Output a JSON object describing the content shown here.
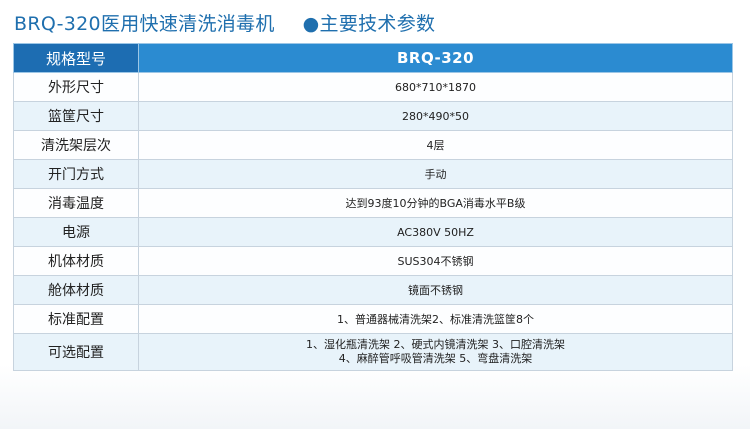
{
  "title": "BRQ-320医用快速清洗消毒机",
  "subtitle": "●主要技术参数",
  "table": {
    "header": {
      "key": "规格型号",
      "value": "BRQ-320"
    },
    "rows": [
      {
        "key": "外形尺寸",
        "value": "680*710*1870"
      },
      {
        "key": "篮筐尺寸",
        "value": "280*490*50"
      },
      {
        "key": "清洗架层次",
        "value": "4层"
      },
      {
        "key": "开门方式",
        "value": "手动"
      },
      {
        "key": "消毒温度",
        "value": "达到93度10分钟的BGA消毒水平B级"
      },
      {
        "key": "电源",
        "value": "AC380V 50HZ"
      },
      {
        "key": "机体材质",
        "value": "SUS304不锈钢"
      },
      {
        "key": "舱体材质",
        "value": "镜面不锈钢"
      },
      {
        "key": "标准配置",
        "value": "1、普通器械清洗架2、标准清洗篮筐8个"
      },
      {
        "key": "可选配置",
        "value_lines": [
          "1、湿化瓶清洗架  2、硬式内镜清洗架  3、口腔清洗架",
          "4、麻醉管呼吸管清洗架  5、弯盘清洗架"
        ]
      }
    ]
  },
  "colors": {
    "title": "#1f6fae",
    "header_left": "#1d6db2",
    "header_right": "#2b8bd1",
    "row_alt": "#e8f3fa"
  }
}
